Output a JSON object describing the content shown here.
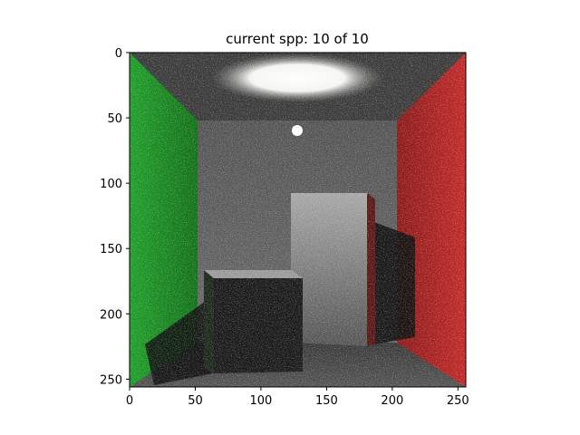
{
  "chart_data": {
    "type": "image",
    "title": "current spp: 10 of 10",
    "image_size": [
      256,
      256
    ],
    "x_ticks": [
      0,
      50,
      100,
      150,
      200,
      250
    ],
    "y_ticks": [
      0,
      50,
      100,
      150,
      200,
      250
    ],
    "xlim": [
      0,
      256
    ],
    "ylim": [
      256,
      0
    ],
    "scene": "Cornell box render (red and green walls, two boxes, ceiling light)",
    "colors": {
      "left_wall": "#2ac236",
      "right_wall": "#c92a2a",
      "back_wall": "#6a6a6a",
      "ceiling": "#3e3e3e",
      "floor": "#4a4a4a"
    }
  }
}
